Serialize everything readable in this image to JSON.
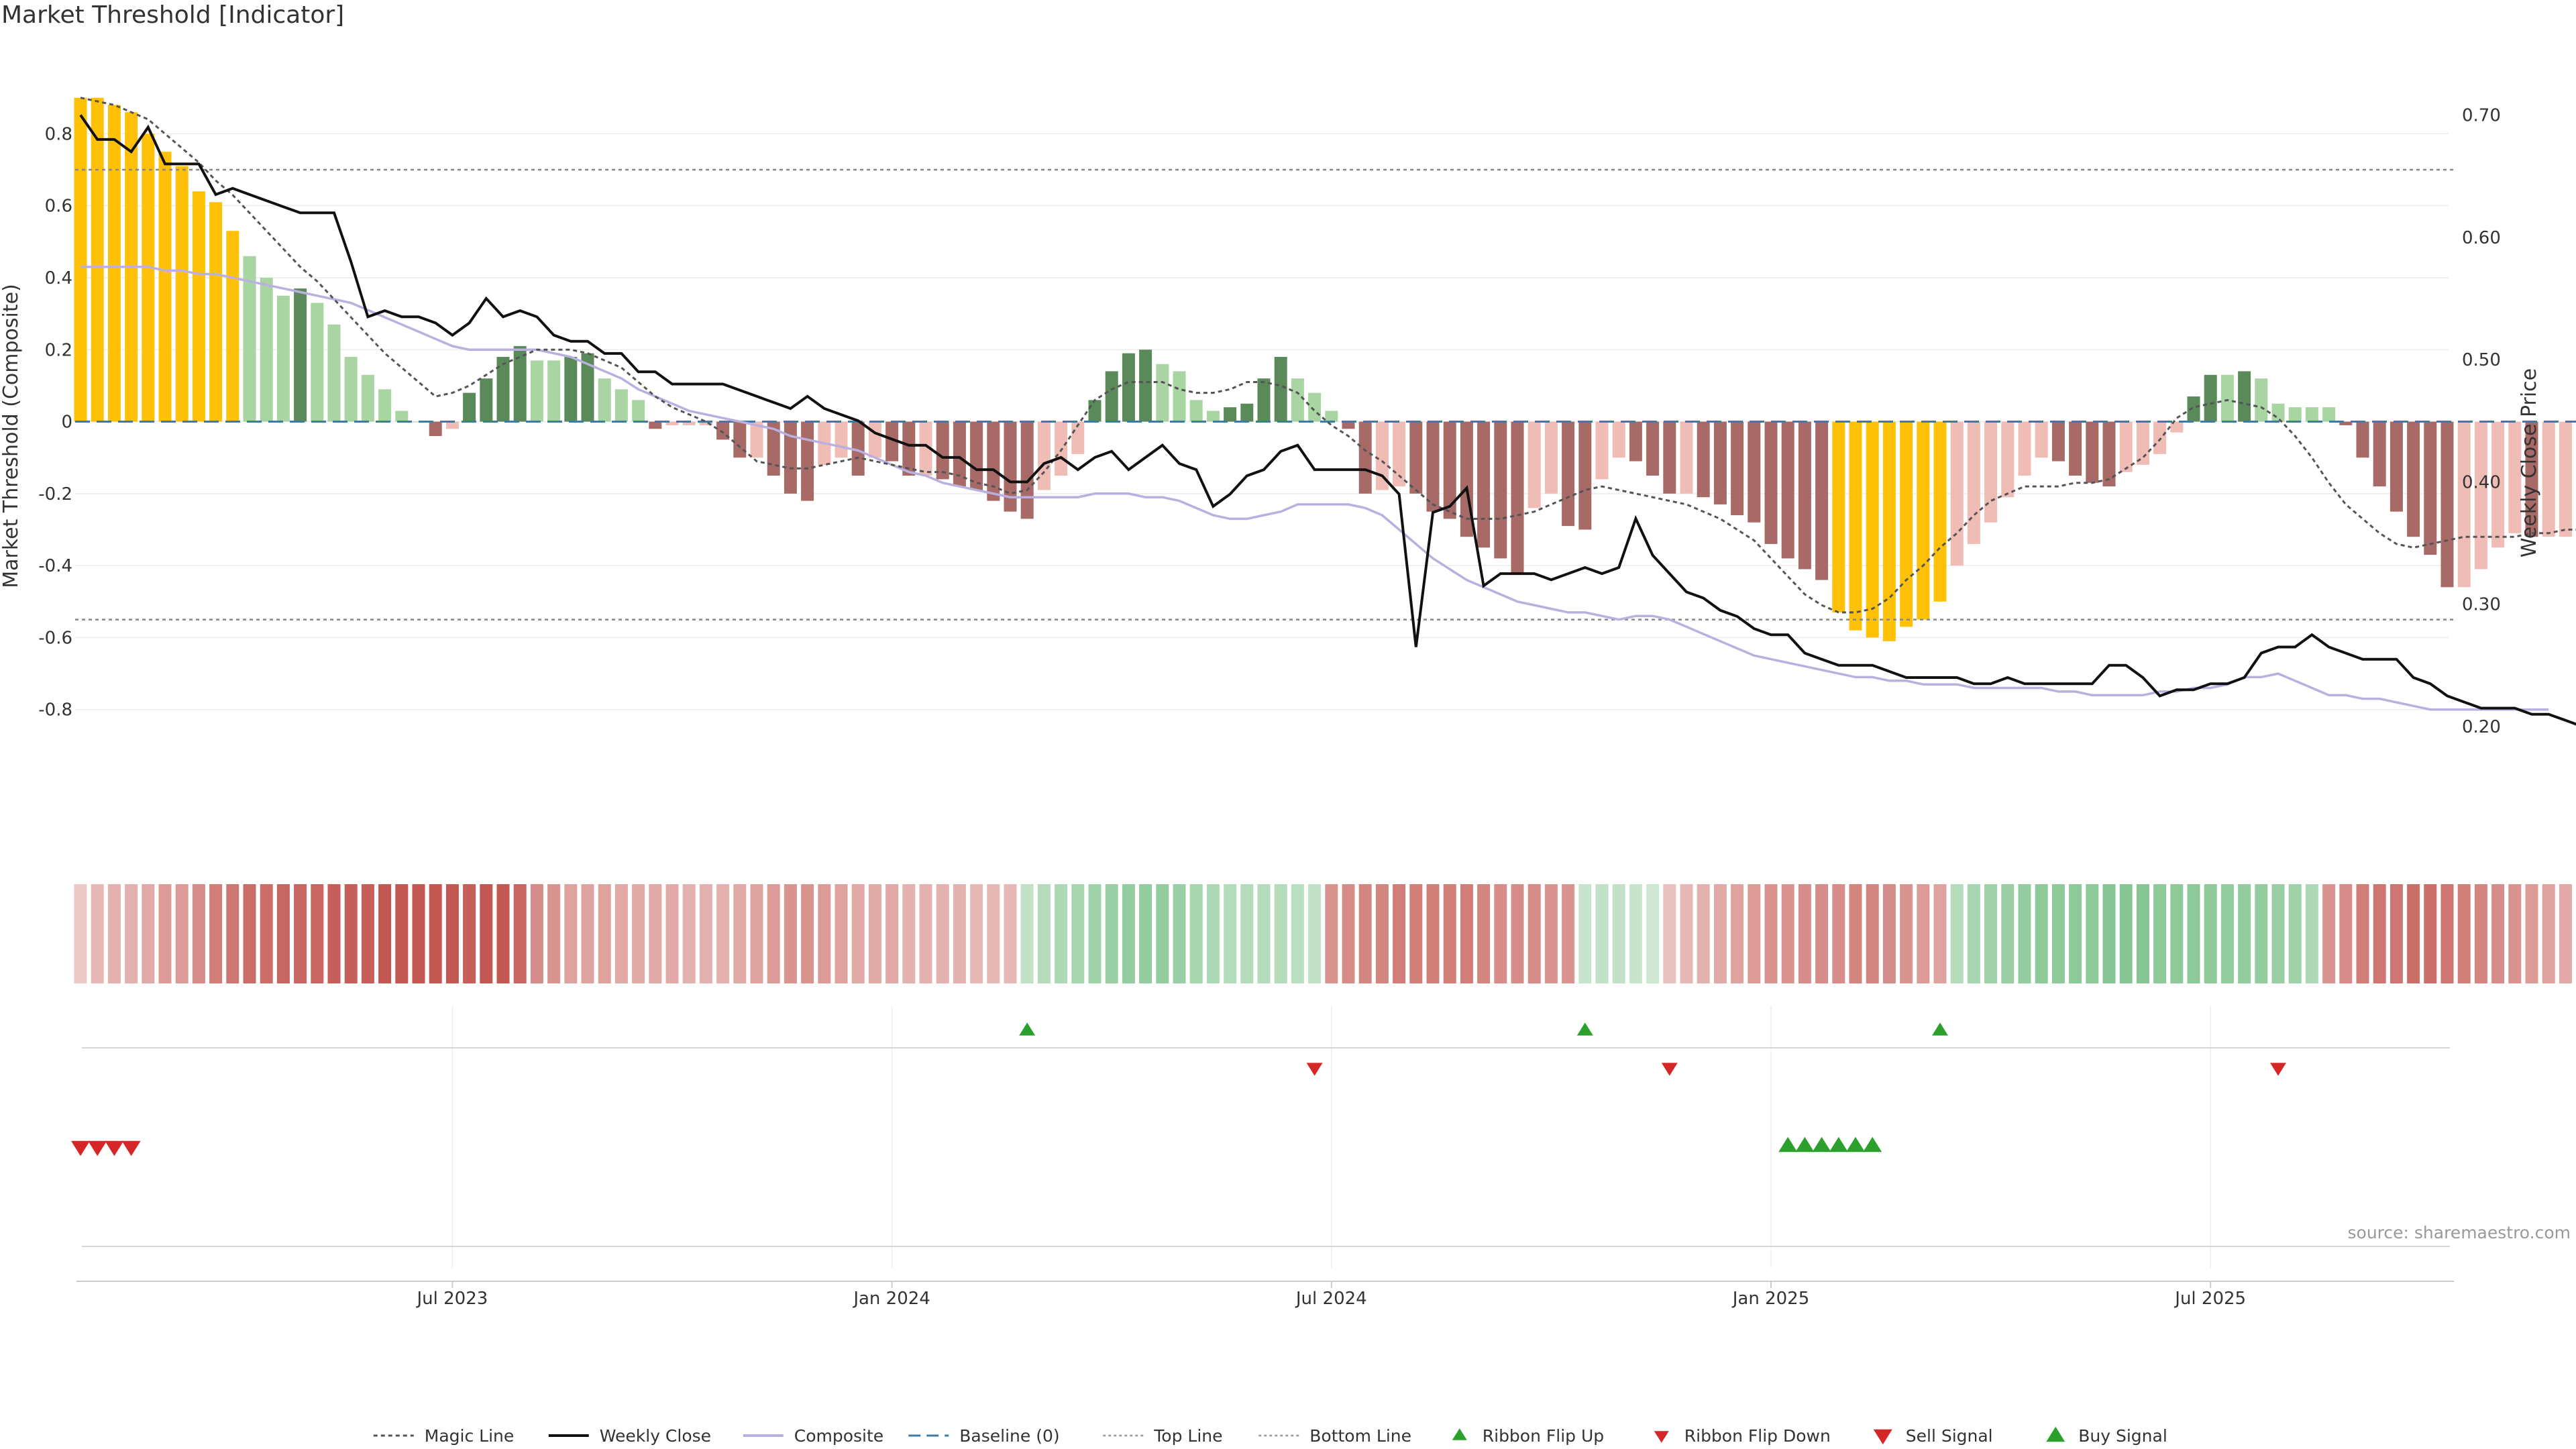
{
  "title": "Market Threshold [Indicator]",
  "source": "source: sharemaestro.com",
  "chart_data": {
    "type": "bar",
    "x_ticks": [
      "Jul 2023",
      "Jan 2024",
      "Jul 2024",
      "Jan 2025",
      "Jul 2025"
    ],
    "x_tick_week_index": [
      22,
      48,
      74,
      100,
      126
    ],
    "left_axis": {
      "label": "Market Threshold (Composite)",
      "ticks": [
        0.8,
        0.6,
        0.4,
        0.2,
        0,
        -0.2,
        -0.4,
        -0.6,
        -0.8
      ],
      "ylim": [
        -1.0,
        0.92
      ]
    },
    "right_axis": {
      "label": "Weekly Close Price",
      "ticks": [
        "0.70",
        "0.60",
        "0.50",
        "0.40",
        "0.30",
        "0.20"
      ],
      "ylim": [
        0.155,
        0.72
      ]
    },
    "top_line": 0.7,
    "bottom_line": -0.55,
    "colors": {
      "extreme": "#ffc107",
      "pos_strong": "#5a8a5a",
      "pos_weak": "#a8d5a2",
      "neg_strong": "#a86a66",
      "neg_weak": "#efbcb6",
      "magic": "#555555",
      "close": "#111111",
      "composite": "#b9b0e0",
      "baseline": "#3a7ca5",
      "buy": "#2ca02c",
      "sell": "#d62728"
    },
    "series": [
      {
        "name": "Composite (bars)",
        "values": [
          0.9,
          0.9,
          0.88,
          0.86,
          0.8,
          0.75,
          0.71,
          0.64,
          0.61,
          0.53,
          0.46,
          0.4,
          0.35,
          0.37,
          0.33,
          0.27,
          0.18,
          0.13,
          0.09,
          0.03,
          0,
          -0.04,
          -0.02,
          0.08,
          0.12,
          0.18,
          0.21,
          0.17,
          0.17,
          0.18,
          0.19,
          0.12,
          0.09,
          0.06,
          -0.02,
          -0.01,
          -0.01,
          -0.01,
          -0.05,
          -0.1,
          -0.1,
          -0.15,
          -0.2,
          -0.22,
          -0.12,
          -0.1,
          -0.15,
          -0.1,
          -0.11,
          -0.15,
          -0.15,
          -0.16,
          -0.18,
          -0.19,
          -0.22,
          -0.25,
          -0.27,
          -0.19,
          -0.15,
          -0.09,
          0.06,
          0.14,
          0.19,
          0.2,
          0.16,
          0.14,
          0.06,
          0.03,
          0.04,
          0.05,
          0.12,
          0.18,
          0.12,
          0.08,
          0.03,
          -0.02,
          -0.2,
          -0.19,
          -0.18,
          -0.2,
          -0.25,
          -0.27,
          -0.32,
          -0.35,
          -0.38,
          -0.42,
          -0.24,
          -0.2,
          -0.29,
          -0.3,
          -0.16,
          -0.1,
          -0.11,
          -0.15,
          -0.2,
          -0.2,
          -0.21,
          -0.23,
          -0.26,
          -0.28,
          -0.34,
          -0.38,
          -0.41,
          -0.44,
          -0.53,
          -0.58,
          -0.6,
          -0.61,
          -0.57,
          -0.55,
          -0.5,
          -0.4,
          -0.34,
          -0.28,
          -0.21,
          -0.15,
          -0.1,
          -0.11,
          -0.15,
          -0.17,
          -0.18,
          -0.14,
          -0.12,
          -0.09,
          -0.03,
          0.07,
          0.13,
          0.13,
          0.14,
          0.12,
          0.05,
          0.04,
          0.04,
          0.04,
          -0.01,
          -0.1,
          -0.18,
          -0.25,
          -0.32,
          -0.37,
          -0.46,
          -0.46,
          -0.41,
          -0.35,
          -0.31,
          -0.32,
          -0.32,
          -0.32,
          -0.27
        ]
      },
      {
        "name": "Weekly Close",
        "axis": "right",
        "values": [
          0.7,
          0.68,
          0.68,
          0.67,
          0.69,
          0.66,
          0.66,
          0.66,
          0.635,
          0.64,
          0.635,
          0.63,
          0.625,
          0.62,
          0.62,
          0.62,
          0.58,
          0.535,
          0.54,
          0.535,
          0.535,
          0.53,
          0.52,
          0.53,
          0.55,
          0.535,
          0.54,
          0.535,
          0.52,
          0.515,
          0.515,
          0.505,
          0.505,
          0.49,
          0.49,
          0.48,
          0.48,
          0.48,
          0.48,
          0.475,
          0.47,
          0.465,
          0.46,
          0.47,
          0.46,
          0.455,
          0.45,
          0.44,
          0.435,
          0.43,
          0.43,
          0.42,
          0.42,
          0.41,
          0.41,
          0.4,
          0.4,
          0.415,
          0.42,
          0.41,
          0.42,
          0.425,
          0.41,
          0.42,
          0.43,
          0.415,
          0.41,
          0.38,
          0.39,
          0.405,
          0.41,
          0.425,
          0.43,
          0.41,
          0.41,
          0.41,
          0.41,
          0.405,
          0.39,
          0.265,
          0.375,
          0.38,
          0.395,
          0.315,
          0.325,
          0.325,
          0.325,
          0.32,
          0.325,
          0.33,
          0.325,
          0.33,
          0.37,
          0.34,
          0.325,
          0.31,
          0.305,
          0.295,
          0.29,
          0.28,
          0.275,
          0.275,
          0.26,
          0.255,
          0.25,
          0.25,
          0.25,
          0.245,
          0.24,
          0.24,
          0.24,
          0.24,
          0.235,
          0.235,
          0.24,
          0.235,
          0.235,
          0.235,
          0.235,
          0.235,
          0.25,
          0.25,
          0.24,
          0.225,
          0.23,
          0.23,
          0.235,
          0.235,
          0.24,
          0.26,
          0.265,
          0.265,
          0.275,
          0.265,
          0.26,
          0.255,
          0.255,
          0.255,
          0.24,
          0.235,
          0.225,
          0.22,
          0.215,
          0.215,
          0.215,
          0.21,
          0.21,
          0.205,
          0.2
        ]
      },
      {
        "name": "Composite (smoothed)",
        "values": [
          0.43,
          0.43,
          0.43,
          0.43,
          0.43,
          0.42,
          0.42,
          0.41,
          0.41,
          0.4,
          0.39,
          0.38,
          0.37,
          0.36,
          0.35,
          0.34,
          0.33,
          0.31,
          0.29,
          0.27,
          0.25,
          0.23,
          0.21,
          0.2,
          0.2,
          0.2,
          0.2,
          0.2,
          0.19,
          0.18,
          0.16,
          0.14,
          0.12,
          0.09,
          0.07,
          0.05,
          0.03,
          0.02,
          0.01,
          0,
          -0.01,
          -0.02,
          -0.04,
          -0.05,
          -0.06,
          -0.07,
          -0.08,
          -0.1,
          -0.12,
          -0.14,
          -0.15,
          -0.17,
          -0.18,
          -0.19,
          -0.2,
          -0.21,
          -0.21,
          -0.21,
          -0.21,
          -0.21,
          -0.2,
          -0.2,
          -0.2,
          -0.21,
          -0.21,
          -0.22,
          -0.24,
          -0.26,
          -0.27,
          -0.27,
          -0.26,
          -0.25,
          -0.23,
          -0.23,
          -0.23,
          -0.23,
          -0.24,
          -0.26,
          -0.3,
          -0.34,
          -0.38,
          -0.41,
          -0.44,
          -0.46,
          -0.48,
          -0.5,
          -0.51,
          -0.52,
          -0.53,
          -0.53,
          -0.54,
          -0.55,
          -0.54,
          -0.54,
          -0.55,
          -0.57,
          -0.59,
          -0.61,
          -0.63,
          -0.65,
          -0.66,
          -0.67,
          -0.68,
          -0.69,
          -0.7,
          -0.71,
          -0.71,
          -0.72,
          -0.72,
          -0.73,
          -0.73,
          -0.73,
          -0.74,
          -0.74,
          -0.74,
          -0.74,
          -0.74,
          -0.75,
          -0.75,
          -0.76,
          -0.76,
          -0.76,
          -0.76,
          -0.75,
          -0.75,
          -0.74,
          -0.74,
          -0.73,
          -0.71,
          -0.71,
          -0.7,
          -0.72,
          -0.74,
          -0.76,
          -0.76,
          -0.77,
          -0.77,
          -0.78,
          -0.79,
          -0.8,
          -0.8,
          -0.8,
          -0.8,
          -0.8,
          -0.8,
          -0.8,
          -0.8
        ]
      },
      {
        "name": "Magic Line",
        "values": [
          0.9,
          0.89,
          0.88,
          0.86,
          0.84,
          0.8,
          0.76,
          0.72,
          0.67,
          0.63,
          0.58,
          0.53,
          0.48,
          0.43,
          0.39,
          0.34,
          0.29,
          0.24,
          0.19,
          0.15,
          0.11,
          0.07,
          0.08,
          0.1,
          0.13,
          0.16,
          0.18,
          0.2,
          0.2,
          0.2,
          0.19,
          0.17,
          0.15,
          0.11,
          0.07,
          0.04,
          0.02,
          0,
          -0.03,
          -0.07,
          -0.11,
          -0.12,
          -0.13,
          -0.13,
          -0.12,
          -0.11,
          -0.1,
          -0.11,
          -0.12,
          -0.13,
          -0.14,
          -0.14,
          -0.15,
          -0.17,
          -0.18,
          -0.2,
          -0.19,
          -0.14,
          -0.08,
          -0.01,
          0.06,
          0.09,
          0.11,
          0.11,
          0.11,
          0.09,
          0.08,
          0.08,
          0.09,
          0.11,
          0.11,
          0.1,
          0.08,
          0.03,
          -0.01,
          -0.04,
          -0.08,
          -0.11,
          -0.15,
          -0.19,
          -0.23,
          -0.25,
          -0.27,
          -0.27,
          -0.27,
          -0.26,
          -0.25,
          -0.23,
          -0.21,
          -0.19,
          -0.18,
          -0.19,
          -0.2,
          -0.21,
          -0.22,
          -0.23,
          -0.25,
          -0.27,
          -0.3,
          -0.33,
          -0.38,
          -0.43,
          -0.48,
          -0.51,
          -0.53,
          -0.53,
          -0.52,
          -0.49,
          -0.44,
          -0.4,
          -0.35,
          -0.31,
          -0.26,
          -0.22,
          -0.2,
          -0.18,
          -0.18,
          -0.18,
          -0.17,
          -0.17,
          -0.16,
          -0.13,
          -0.1,
          -0.05,
          0.01,
          0.04,
          0.05,
          0.06,
          0.05,
          0.04,
          0.01,
          -0.04,
          -0.1,
          -0.17,
          -0.23,
          -0.27,
          -0.31,
          -0.34,
          -0.35,
          -0.34,
          -0.33,
          -0.32,
          -0.32,
          -0.32,
          -0.32,
          -0.31,
          -0.31,
          -0.3,
          -0.3
        ]
      },
      {
        "name": "Ribbon intensity (signed)",
        "values": [
          -0.2,
          -0.3,
          -0.35,
          -0.35,
          -0.4,
          -0.5,
          -0.5,
          -0.6,
          -0.7,
          -0.75,
          -0.8,
          -0.8,
          -0.85,
          -0.85,
          -0.85,
          -0.9,
          -0.9,
          -0.9,
          -0.95,
          -0.95,
          -0.95,
          -0.95,
          -0.95,
          -0.9,
          -0.95,
          -0.95,
          -0.85,
          -0.6,
          -0.55,
          -0.45,
          -0.45,
          -0.45,
          -0.4,
          -0.4,
          -0.4,
          -0.4,
          -0.35,
          -0.35,
          -0.35,
          -0.4,
          -0.45,
          -0.5,
          -0.55,
          -0.55,
          -0.5,
          -0.45,
          -0.4,
          -0.4,
          -0.4,
          -0.35,
          -0.35,
          -0.35,
          -0.35,
          -0.3,
          -0.3,
          -0.3,
          0.35,
          0.45,
          0.5,
          0.55,
          0.6,
          0.65,
          0.7,
          0.7,
          0.7,
          0.65,
          0.55,
          0.5,
          0.45,
          0.45,
          0.45,
          0.45,
          0.4,
          0.35,
          -0.55,
          -0.6,
          -0.65,
          -0.65,
          -0.7,
          -0.7,
          -0.7,
          -0.7,
          -0.7,
          -0.65,
          -0.6,
          -0.6,
          -0.6,
          -0.55,
          -0.55,
          0.3,
          0.35,
          0.35,
          0.3,
          0.25,
          -0.25,
          -0.3,
          -0.35,
          -0.4,
          -0.45,
          -0.5,
          -0.55,
          -0.55,
          -0.6,
          -0.6,
          -0.6,
          -0.65,
          -0.65,
          -0.6,
          -0.55,
          -0.5,
          -0.45,
          0.45,
          0.55,
          0.6,
          0.65,
          0.7,
          0.75,
          0.75,
          0.75,
          0.75,
          0.8,
          0.8,
          0.8,
          0.75,
          0.75,
          0.75,
          0.75,
          0.7,
          0.7,
          0.7,
          0.65,
          0.6,
          0.5,
          -0.55,
          -0.6,
          -0.7,
          -0.75,
          -0.75,
          -0.8,
          -0.8,
          -0.75,
          -0.7,
          -0.65,
          -0.6,
          -0.55,
          -0.5,
          -0.45,
          -0.4
        ]
      }
    ],
    "events": {
      "ribbon_flip_up": [
        56,
        89,
        110
      ],
      "ribbon_flip_down": [
        73,
        94,
        130
      ],
      "sell_signal": [
        0,
        1,
        2,
        3
      ],
      "buy_signal": [
        101,
        102,
        103,
        104,
        105,
        106
      ]
    },
    "legend": {
      "position": "bottom",
      "entries": [
        "Magic Line",
        "Weekly Close",
        "Composite",
        "Baseline (0)",
        "Top Line",
        "Bottom Line",
        "Ribbon Flip Up",
        "Ribbon Flip Down",
        "Sell Signal",
        "Buy Signal"
      ]
    }
  }
}
